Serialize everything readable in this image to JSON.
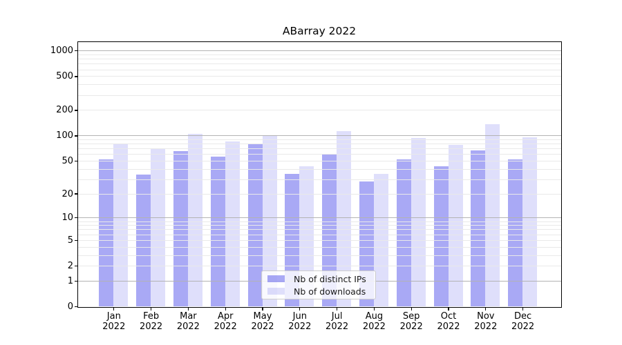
{
  "chart_data": {
    "type": "bar",
    "title": "ABarray 2022",
    "categories": [
      "Jan",
      "Feb",
      "Mar",
      "Apr",
      "May",
      "Jun",
      "Jul",
      "Aug",
      "Sep",
      "Oct",
      "Nov",
      "Dec"
    ],
    "year_label": "2022",
    "series": [
      {
        "name": "Nb of distinct IPs",
        "color": "rgba(64,64,232,0.45)",
        "values": [
          52,
          34,
          65,
          56,
          80,
          35,
          59,
          28,
          52,
          43,
          67,
          52
        ]
      },
      {
        "name": "Nb of downloads",
        "color": "rgba(64,64,232,0.17)",
        "values": [
          80,
          69,
          104,
          85,
          100,
          43,
          112,
          35,
          94,
          77,
          136,
          95
        ]
      }
    ],
    "yscale": "log1p",
    "ylim": [
      0,
      1258
    ],
    "yticks": [
      1000,
      500,
      200,
      100,
      50,
      20,
      10,
      5,
      2,
      1,
      0
    ],
    "grid": {
      "major_values": [
        1,
        10,
        100,
        1000
      ],
      "minor_values": [
        2,
        3,
        4,
        5,
        6,
        7,
        8,
        9,
        20,
        30,
        40,
        50,
        60,
        70,
        80,
        90,
        200,
        300,
        400,
        500,
        600,
        700,
        800,
        900
      ],
      "major_color": "#b3b3b3",
      "minor_color": "#e9e9e9"
    },
    "legend": {
      "position": "lower-center-inside"
    },
    "xlabel": "",
    "ylabel": ""
  },
  "colors": {
    "background": "#ffffff",
    "spine": "#000000",
    "text": "#000000",
    "legend_border": "#cccccc",
    "legend_background": "rgba(255,255,255,0.8)"
  }
}
